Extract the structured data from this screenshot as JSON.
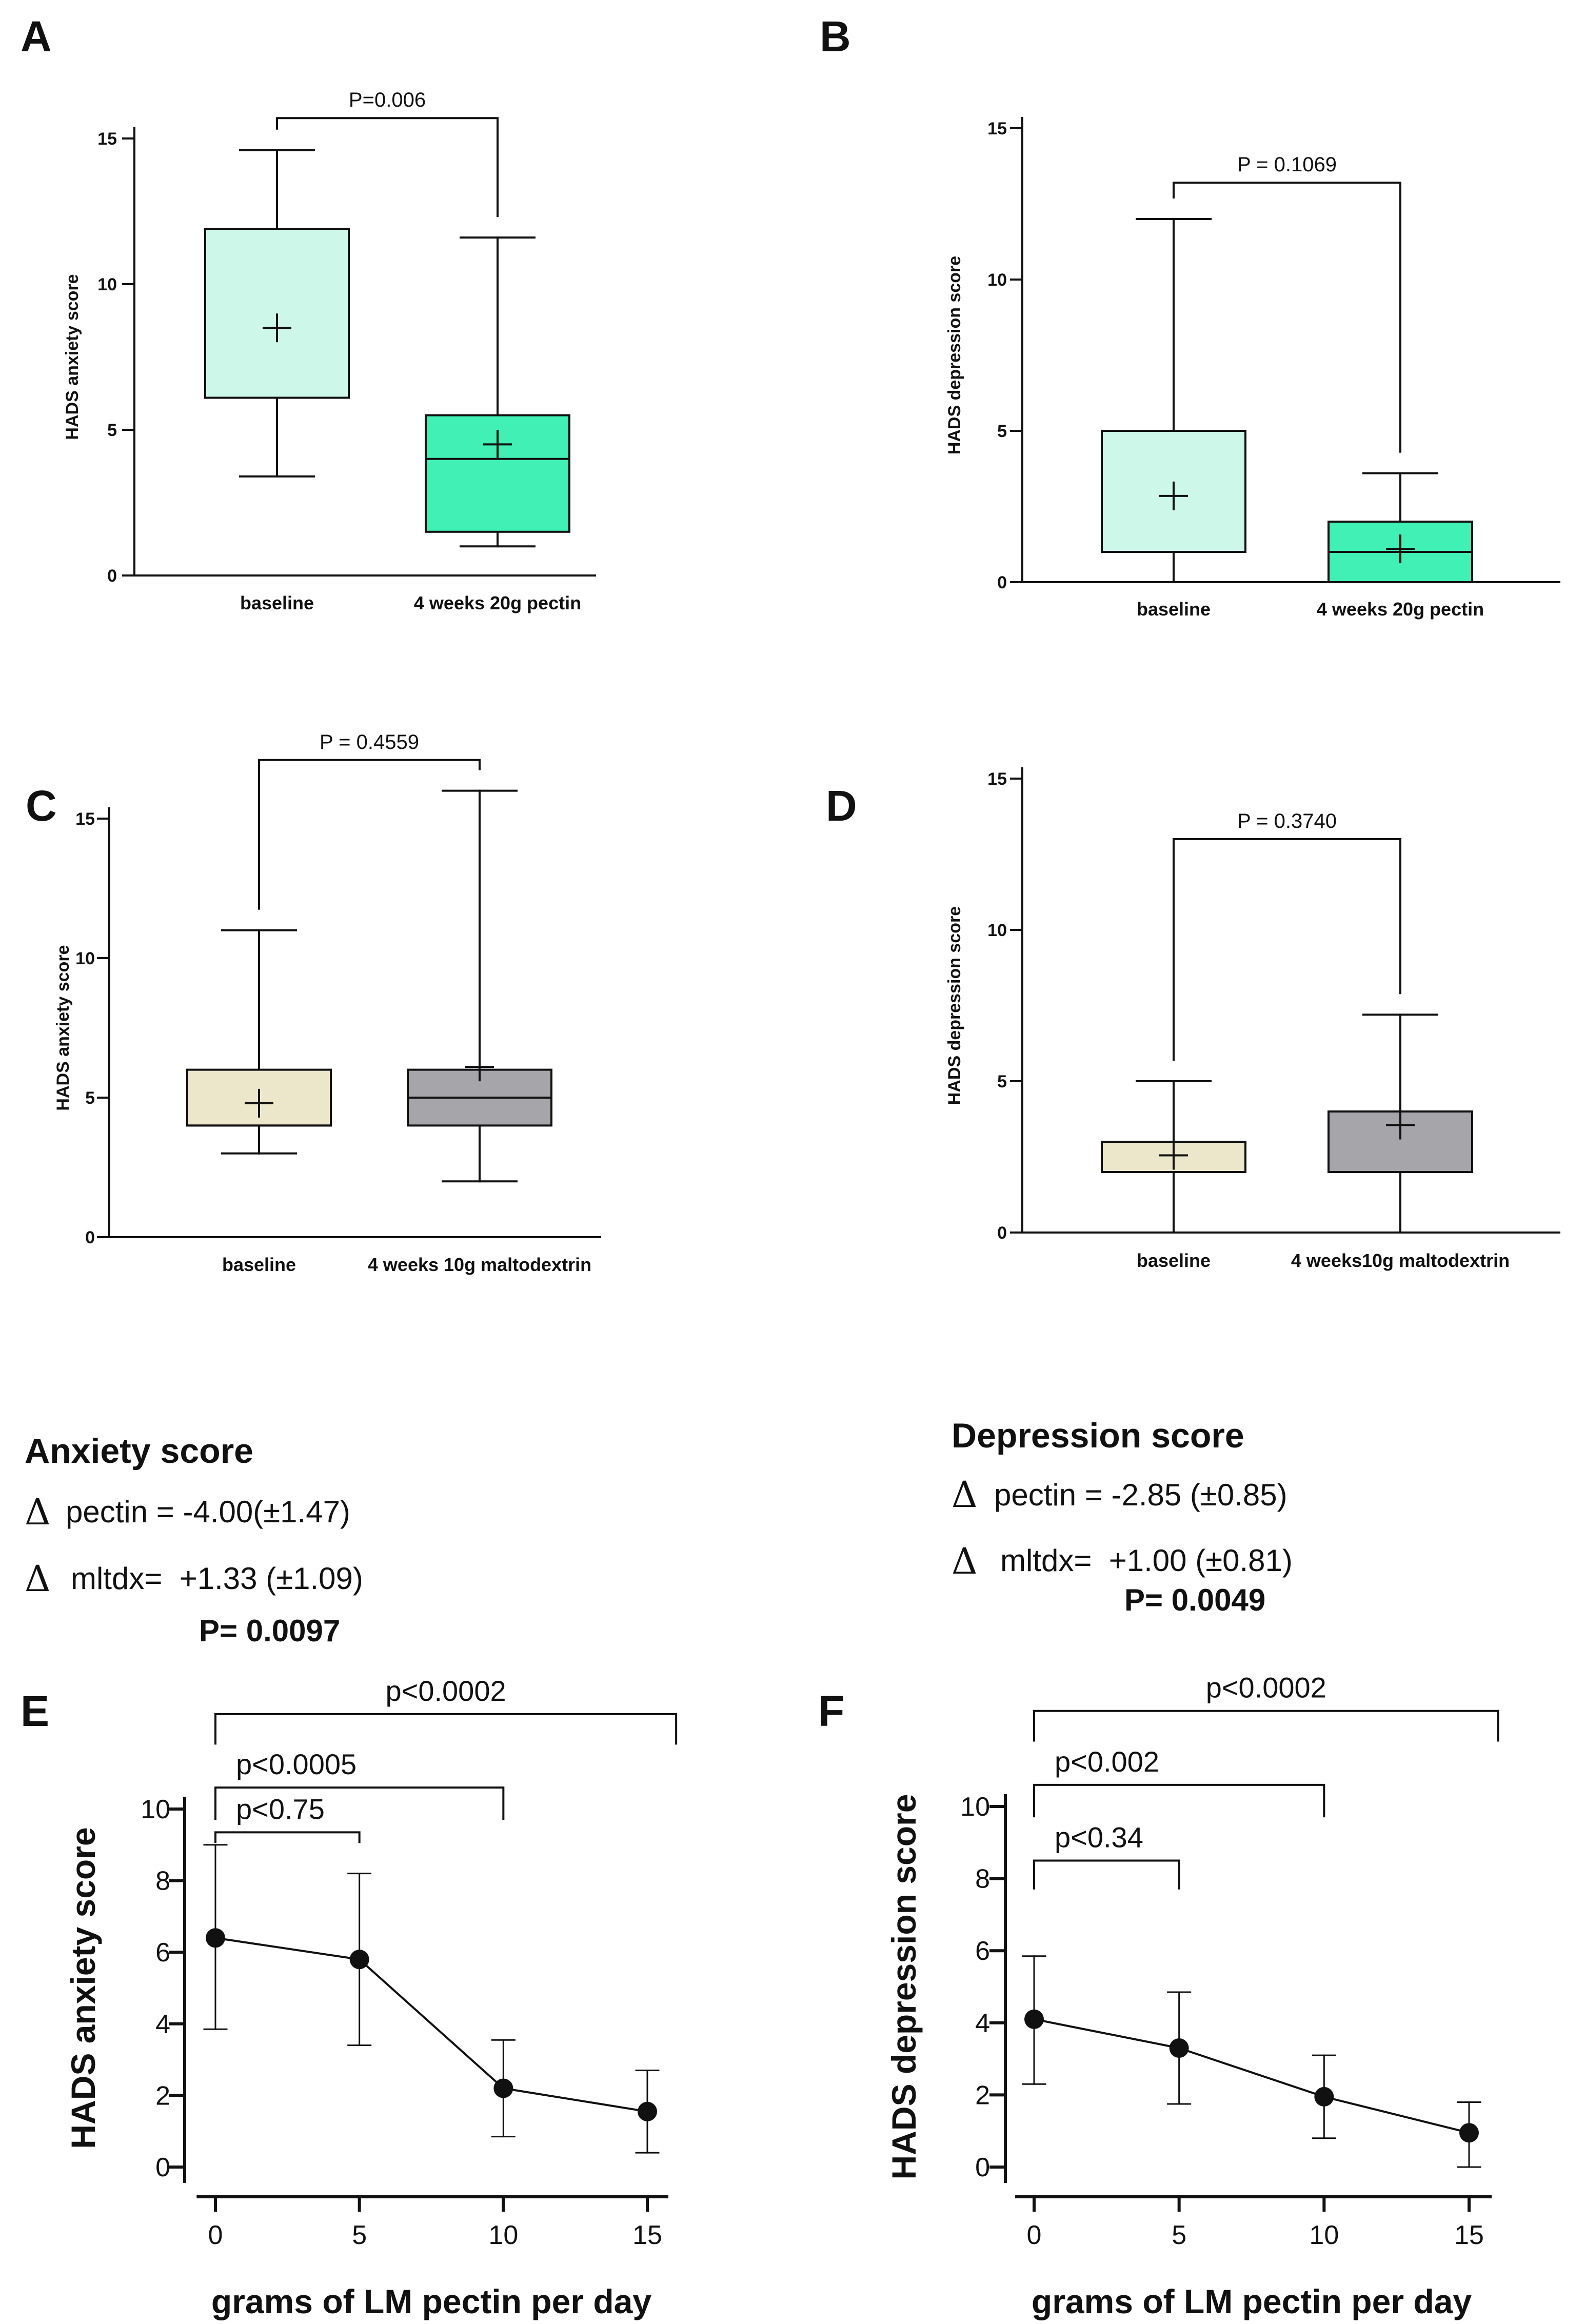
{
  "chart_data": [
    {
      "panel": "A",
      "type": "box",
      "ylabel": "HADS anxiety score",
      "ylim": [
        0,
        15
      ],
      "yticks": [
        0,
        5,
        10,
        15
      ],
      "categories": [
        "baseline",
        "4 weeks 20g pectin"
      ],
      "boxes": [
        {
          "min": 3.4,
          "q1": 6.1,
          "median": 6.1,
          "q3": 11.9,
          "max": 14.6,
          "mean": 8.5,
          "fill": "#cdf7e8"
        },
        {
          "min": 1.0,
          "q1": 1.5,
          "median": 4.0,
          "q3": 5.5,
          "max": 11.6,
          "mean": 4.5,
          "fill": "#40f0b4"
        }
      ],
      "pvalue": "P=0.006",
      "bracket_y": 15.7
    },
    {
      "panel": "B",
      "type": "box",
      "ylabel": "HADS depression score",
      "ylim": [
        0,
        15
      ],
      "yticks": [
        0,
        5,
        10,
        15
      ],
      "categories": [
        "baseline",
        "4 weeks 20g pectin"
      ],
      "boxes": [
        {
          "min": 0,
          "q1": 1.0,
          "median": 1.0,
          "q3": 5.0,
          "max": 12.0,
          "mean": 2.85,
          "fill": "#cdf7e8"
        },
        {
          "min": 0,
          "q1": 0,
          "median": 1.0,
          "q3": 2.0,
          "max": 3.6,
          "mean": 1.1,
          "fill": "#40f0b4"
        }
      ],
      "pvalue": "P = 0.1069",
      "bracket_y": 13.2
    },
    {
      "panel": "C",
      "type": "box",
      "ylabel": "HADS anxiety score",
      "ylim": [
        0,
        15
      ],
      "yticks": [
        0,
        5,
        10,
        15
      ],
      "categories": [
        "baseline",
        "4 weeks 10g maltodextrin"
      ],
      "boxes": [
        {
          "min": 3.0,
          "q1": 4.0,
          "median": 4.0,
          "q3": 6.0,
          "max": 11.0,
          "mean": 4.8,
          "fill": "#ece6cb"
        },
        {
          "min": 2.0,
          "q1": 4.0,
          "median": 5.0,
          "q3": 6.0,
          "max": 16.0,
          "mean": 6.1,
          "fill": "#a6a6aa"
        }
      ],
      "pvalue": "P = 0.4559",
      "bracket_y": 17.1
    },
    {
      "panel": "D",
      "type": "box",
      "ylabel": "HADS depression score",
      "ylim": [
        0,
        15
      ],
      "yticks": [
        0,
        5,
        10,
        15
      ],
      "categories": [
        "baseline",
        "4 weeks10g maltodextrin"
      ],
      "boxes": [
        {
          "min": 0,
          "q1": 2.0,
          "median": 2.0,
          "q3": 3.0,
          "max": 5.0,
          "mean": 2.55,
          "fill": "#ece6cb"
        },
        {
          "min": 0,
          "q1": 2.0,
          "median": 4.0,
          "q3": 4.0,
          "max": 7.2,
          "mean": 3.55,
          "fill": "#a6a6aa"
        }
      ],
      "pvalue": "P = 0.3740",
      "bracket_y": 13.0
    },
    {
      "panel": "E",
      "type": "line",
      "xlabel": "grams of LM pectin per day",
      "ylabel": "HADS anxiety score",
      "x": [
        0,
        5,
        10,
        15
      ],
      "y": [
        6.4,
        5.8,
        2.2,
        1.55
      ],
      "err_low": [
        3.85,
        3.4,
        0.85,
        0.4
      ],
      "err_high": [
        9.0,
        8.2,
        3.55,
        2.7
      ],
      "ylim": [
        0,
        10
      ],
      "yticks": [
        0,
        2,
        4,
        6,
        8,
        10
      ],
      "xticks": [
        0,
        5,
        10,
        15
      ],
      "comparisons": [
        {
          "label": "p<0.75",
          "x1": 0,
          "x2": 5,
          "y": 9.35,
          "drop_to": 9.05
        },
        {
          "label": "p<0.0005",
          "x1": 0,
          "x2": 10,
          "y": 10.6,
          "drop_to": 9.7
        },
        {
          "label": "p<0.0002",
          "x1": 0,
          "x2": 16,
          "y": 12.65,
          "drop_to": 11.8
        }
      ]
    },
    {
      "panel": "F",
      "type": "line",
      "xlabel": "grams of LM pectin per day",
      "ylabel": "HADS depression score",
      "x": [
        0,
        5,
        10,
        15
      ],
      "y": [
        4.1,
        3.3,
        1.95,
        0.95
      ],
      "err_low": [
        2.3,
        1.75,
        0.8,
        0
      ],
      "err_high": [
        5.85,
        4.85,
        3.1,
        1.8
      ],
      "ylim": [
        0,
        10
      ],
      "yticks": [
        0,
        2,
        4,
        6,
        8,
        10
      ],
      "xticks": [
        0,
        5,
        10,
        15
      ],
      "comparisons": [
        {
          "label": "p<0.34",
          "x1": 0,
          "x2": 5,
          "y": 8.5,
          "drop_to": 7.7
        },
        {
          "label": "p<0.002",
          "x1": 0,
          "x2": 10,
          "y": 10.6,
          "drop_to": 9.7
        },
        {
          "label": "p<0.0002",
          "x1": 0,
          "x2": 16,
          "y": 12.65,
          "drop_to": 11.8
        }
      ]
    }
  ],
  "summary": [
    {
      "title": "Anxiety score",
      "line1_delta": "Δ",
      "line1_text": "pectin = -4.00(±1.47)",
      "line2_delta": "Δ",
      "line2_text": "mltdx=  +1.33 (±1.09)",
      "pvalue": "P= 0.0097"
    },
    {
      "title": "Depression score",
      "line1_delta": "Δ",
      "line1_text": "pectin = -2.85 (±0.85)",
      "line2_delta": "Δ",
      "line2_text": "mltdx=  +1.00 (±0.81)",
      "pvalue": "P= 0.0049"
    }
  ],
  "colors": {
    "axis": "#111111",
    "marker": "#111111"
  }
}
